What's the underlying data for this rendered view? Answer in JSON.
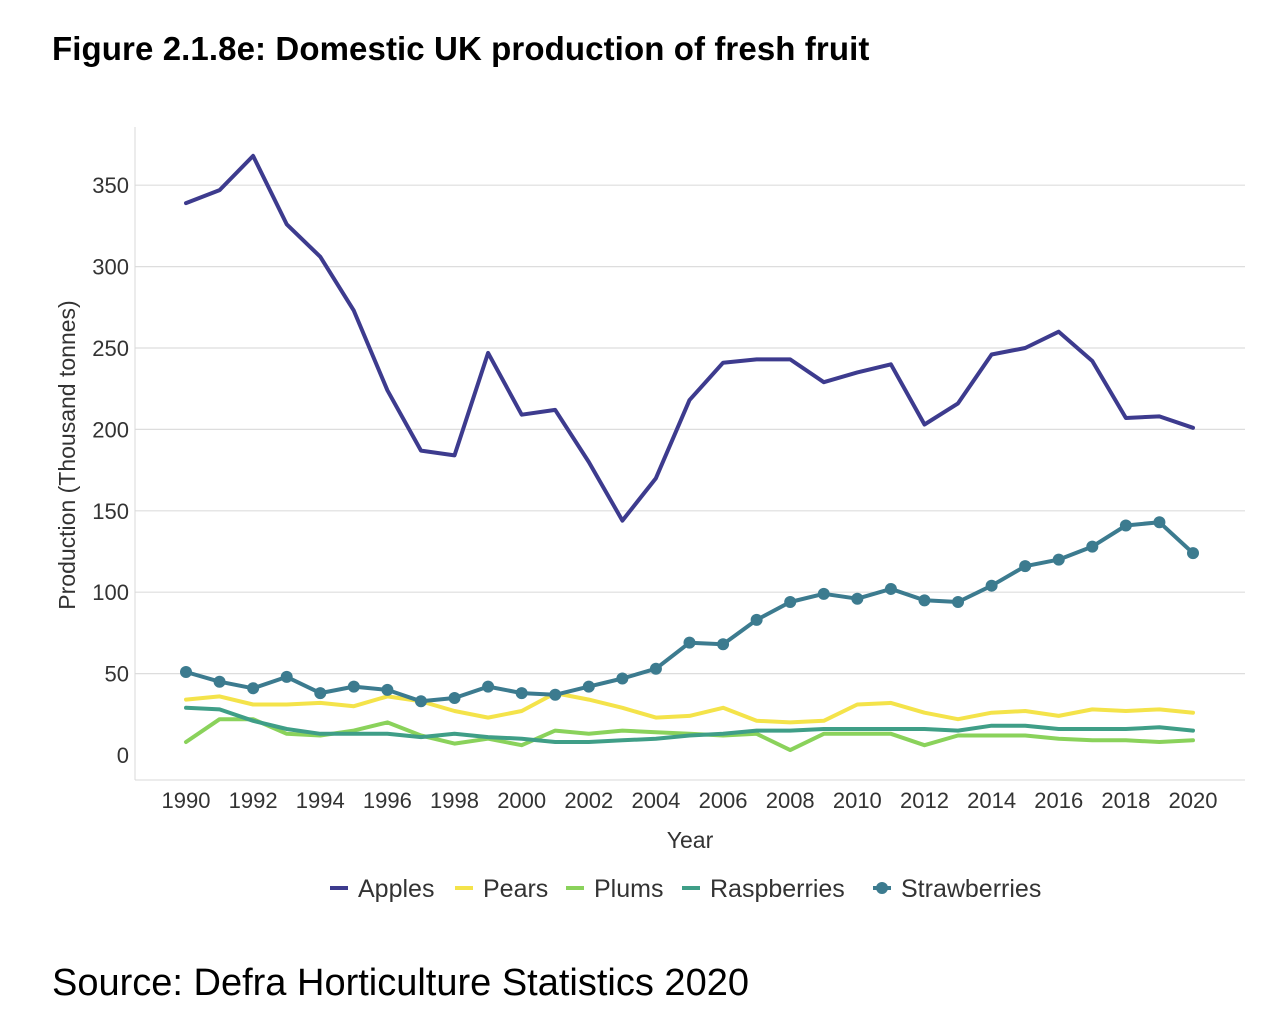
{
  "title": "Figure 2.1.8e: Domestic UK production of fresh fruit",
  "source": "Source: Defra Horticulture Statistics 2020",
  "chart_data": {
    "type": "line",
    "title": "Figure 2.1.8e: Domestic UK production of fresh fruit",
    "xlabel": "Year",
    "ylabel": "Production (Thousand tonnes)",
    "xlim": [
      1990,
      2020
    ],
    "ylim": [
      0,
      370
    ],
    "x_ticks": [
      1990,
      1992,
      1994,
      1996,
      1998,
      2000,
      2002,
      2004,
      2006,
      2008,
      2010,
      2012,
      2014,
      2016,
      2018,
      2020
    ],
    "y_ticks": [
      0,
      50,
      100,
      150,
      200,
      250,
      300,
      350
    ],
    "grid": true,
    "legend_position": "bottom",
    "x": [
      1990,
      1991,
      1992,
      1993,
      1994,
      1995,
      1996,
      1997,
      1998,
      1999,
      2000,
      2001,
      2002,
      2003,
      2004,
      2005,
      2006,
      2007,
      2008,
      2009,
      2010,
      2011,
      2012,
      2013,
      2014,
      2015,
      2016,
      2017,
      2018,
      2019,
      2020
    ],
    "series": [
      {
        "name": "Apples",
        "color": "#3d3b8e",
        "markers": false,
        "values": [
          339,
          347,
          368,
          326,
          306,
          273,
          224,
          187,
          184,
          247,
          209,
          212,
          180,
          144,
          170,
          218,
          241,
          243,
          243,
          229,
          235,
          240,
          203,
          216,
          246,
          250,
          260,
          242,
          207,
          208,
          201
        ]
      },
      {
        "name": "Pears",
        "color": "#f4e34a",
        "markers": false,
        "values": [
          34,
          36,
          31,
          31,
          32,
          30,
          36,
          33,
          27,
          23,
          27,
          38,
          34,
          29,
          23,
          24,
          29,
          21,
          20,
          21,
          31,
          32,
          26,
          22,
          26,
          27,
          24,
          28,
          27,
          28,
          26
        ]
      },
      {
        "name": "Plums",
        "color": "#8ad25b",
        "markers": false,
        "values": [
          8,
          22,
          22,
          13,
          12,
          15,
          20,
          12,
          7,
          10,
          6,
          15,
          13,
          15,
          14,
          13,
          12,
          13,
          3,
          13,
          13,
          13,
          6,
          12,
          12,
          12,
          10,
          9,
          9,
          8,
          9
        ]
      },
      {
        "name": "Raspberries",
        "color": "#3f9e87",
        "markers": false,
        "values": [
          29,
          28,
          21,
          16,
          13,
          13,
          13,
          11,
          13,
          11,
          10,
          8,
          8,
          9,
          10,
          12,
          13,
          15,
          15,
          16,
          16,
          16,
          16,
          15,
          18,
          18,
          16,
          16,
          16,
          17,
          15
        ]
      },
      {
        "name": "Strawberries",
        "color": "#3c7b8f",
        "markers": true,
        "values": [
          51,
          45,
          41,
          48,
          38,
          42,
          40,
          33,
          35,
          42,
          38,
          37,
          42,
          47,
          53,
          69,
          68,
          83,
          94,
          99,
          96,
          102,
          95,
          94,
          104,
          116,
          120,
          128,
          141,
          143,
          124
        ]
      }
    ]
  }
}
